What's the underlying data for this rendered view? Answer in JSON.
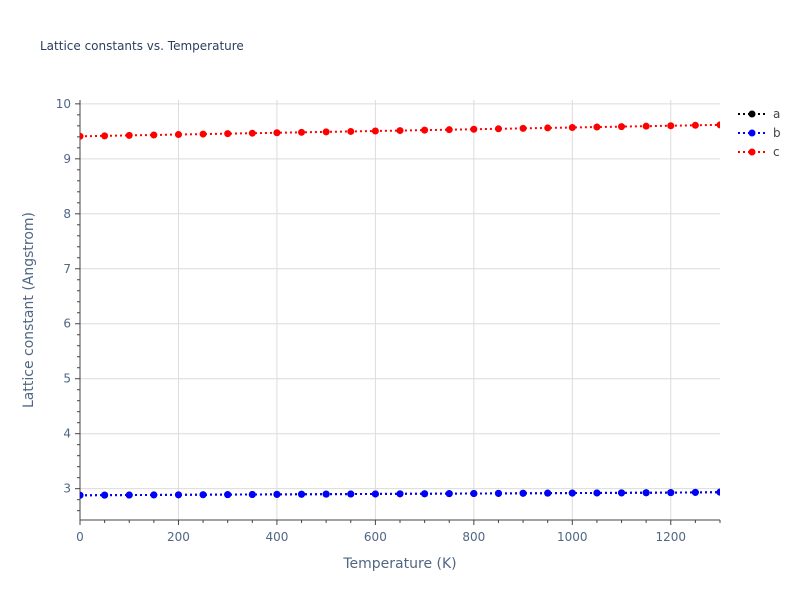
{
  "chart_data": {
    "type": "line",
    "title": "Lattice constants vs. Temperature",
    "xlabel": "Temperature (K)",
    "ylabel": "Lattice constant (Angstrom)",
    "xlim": [
      0,
      1300
    ],
    "ylim": [
      2.43,
      10.07
    ],
    "x_ticks": [
      0,
      200,
      400,
      600,
      800,
      1000,
      1200
    ],
    "y_ticks": [
      3,
      4,
      5,
      6,
      7,
      8,
      9,
      10
    ],
    "grid": true,
    "legend_position": "top-right",
    "line_style": "dotted-with-markers",
    "x": [
      0,
      50,
      100,
      150,
      200,
      250,
      300,
      350,
      400,
      450,
      500,
      550,
      600,
      650,
      700,
      750,
      800,
      850,
      900,
      950,
      1000,
      1050,
      1100,
      1150,
      1200,
      1250,
      1300
    ],
    "series": [
      {
        "name": "a",
        "color": "#000000",
        "values": [
          2.88,
          2.882,
          2.884,
          2.886,
          2.888,
          2.89,
          2.892,
          2.894,
          2.896,
          2.898,
          2.9,
          2.902,
          2.904,
          2.906,
          2.908,
          2.91,
          2.912,
          2.914,
          2.916,
          2.918,
          2.92,
          2.922,
          2.924,
          2.926,
          2.928,
          2.932,
          2.936
        ]
      },
      {
        "name": "b",
        "color": "#0000ff",
        "values": [
          2.88,
          2.882,
          2.884,
          2.886,
          2.888,
          2.89,
          2.892,
          2.894,
          2.896,
          2.898,
          2.9,
          2.902,
          2.904,
          2.906,
          2.908,
          2.91,
          2.912,
          2.914,
          2.916,
          2.918,
          2.92,
          2.922,
          2.924,
          2.926,
          2.928,
          2.932,
          2.936
        ]
      },
      {
        "name": "c",
        "color": "#ff0000",
        "values": [
          9.41,
          9.418,
          9.426,
          9.434,
          9.442,
          9.45,
          9.458,
          9.466,
          9.474,
          9.482,
          9.49,
          9.498,
          9.506,
          9.514,
          9.522,
          9.53,
          9.538,
          9.546,
          9.554,
          9.562,
          9.57,
          9.578,
          9.586,
          9.594,
          9.602,
          9.61,
          9.618
        ]
      }
    ]
  }
}
